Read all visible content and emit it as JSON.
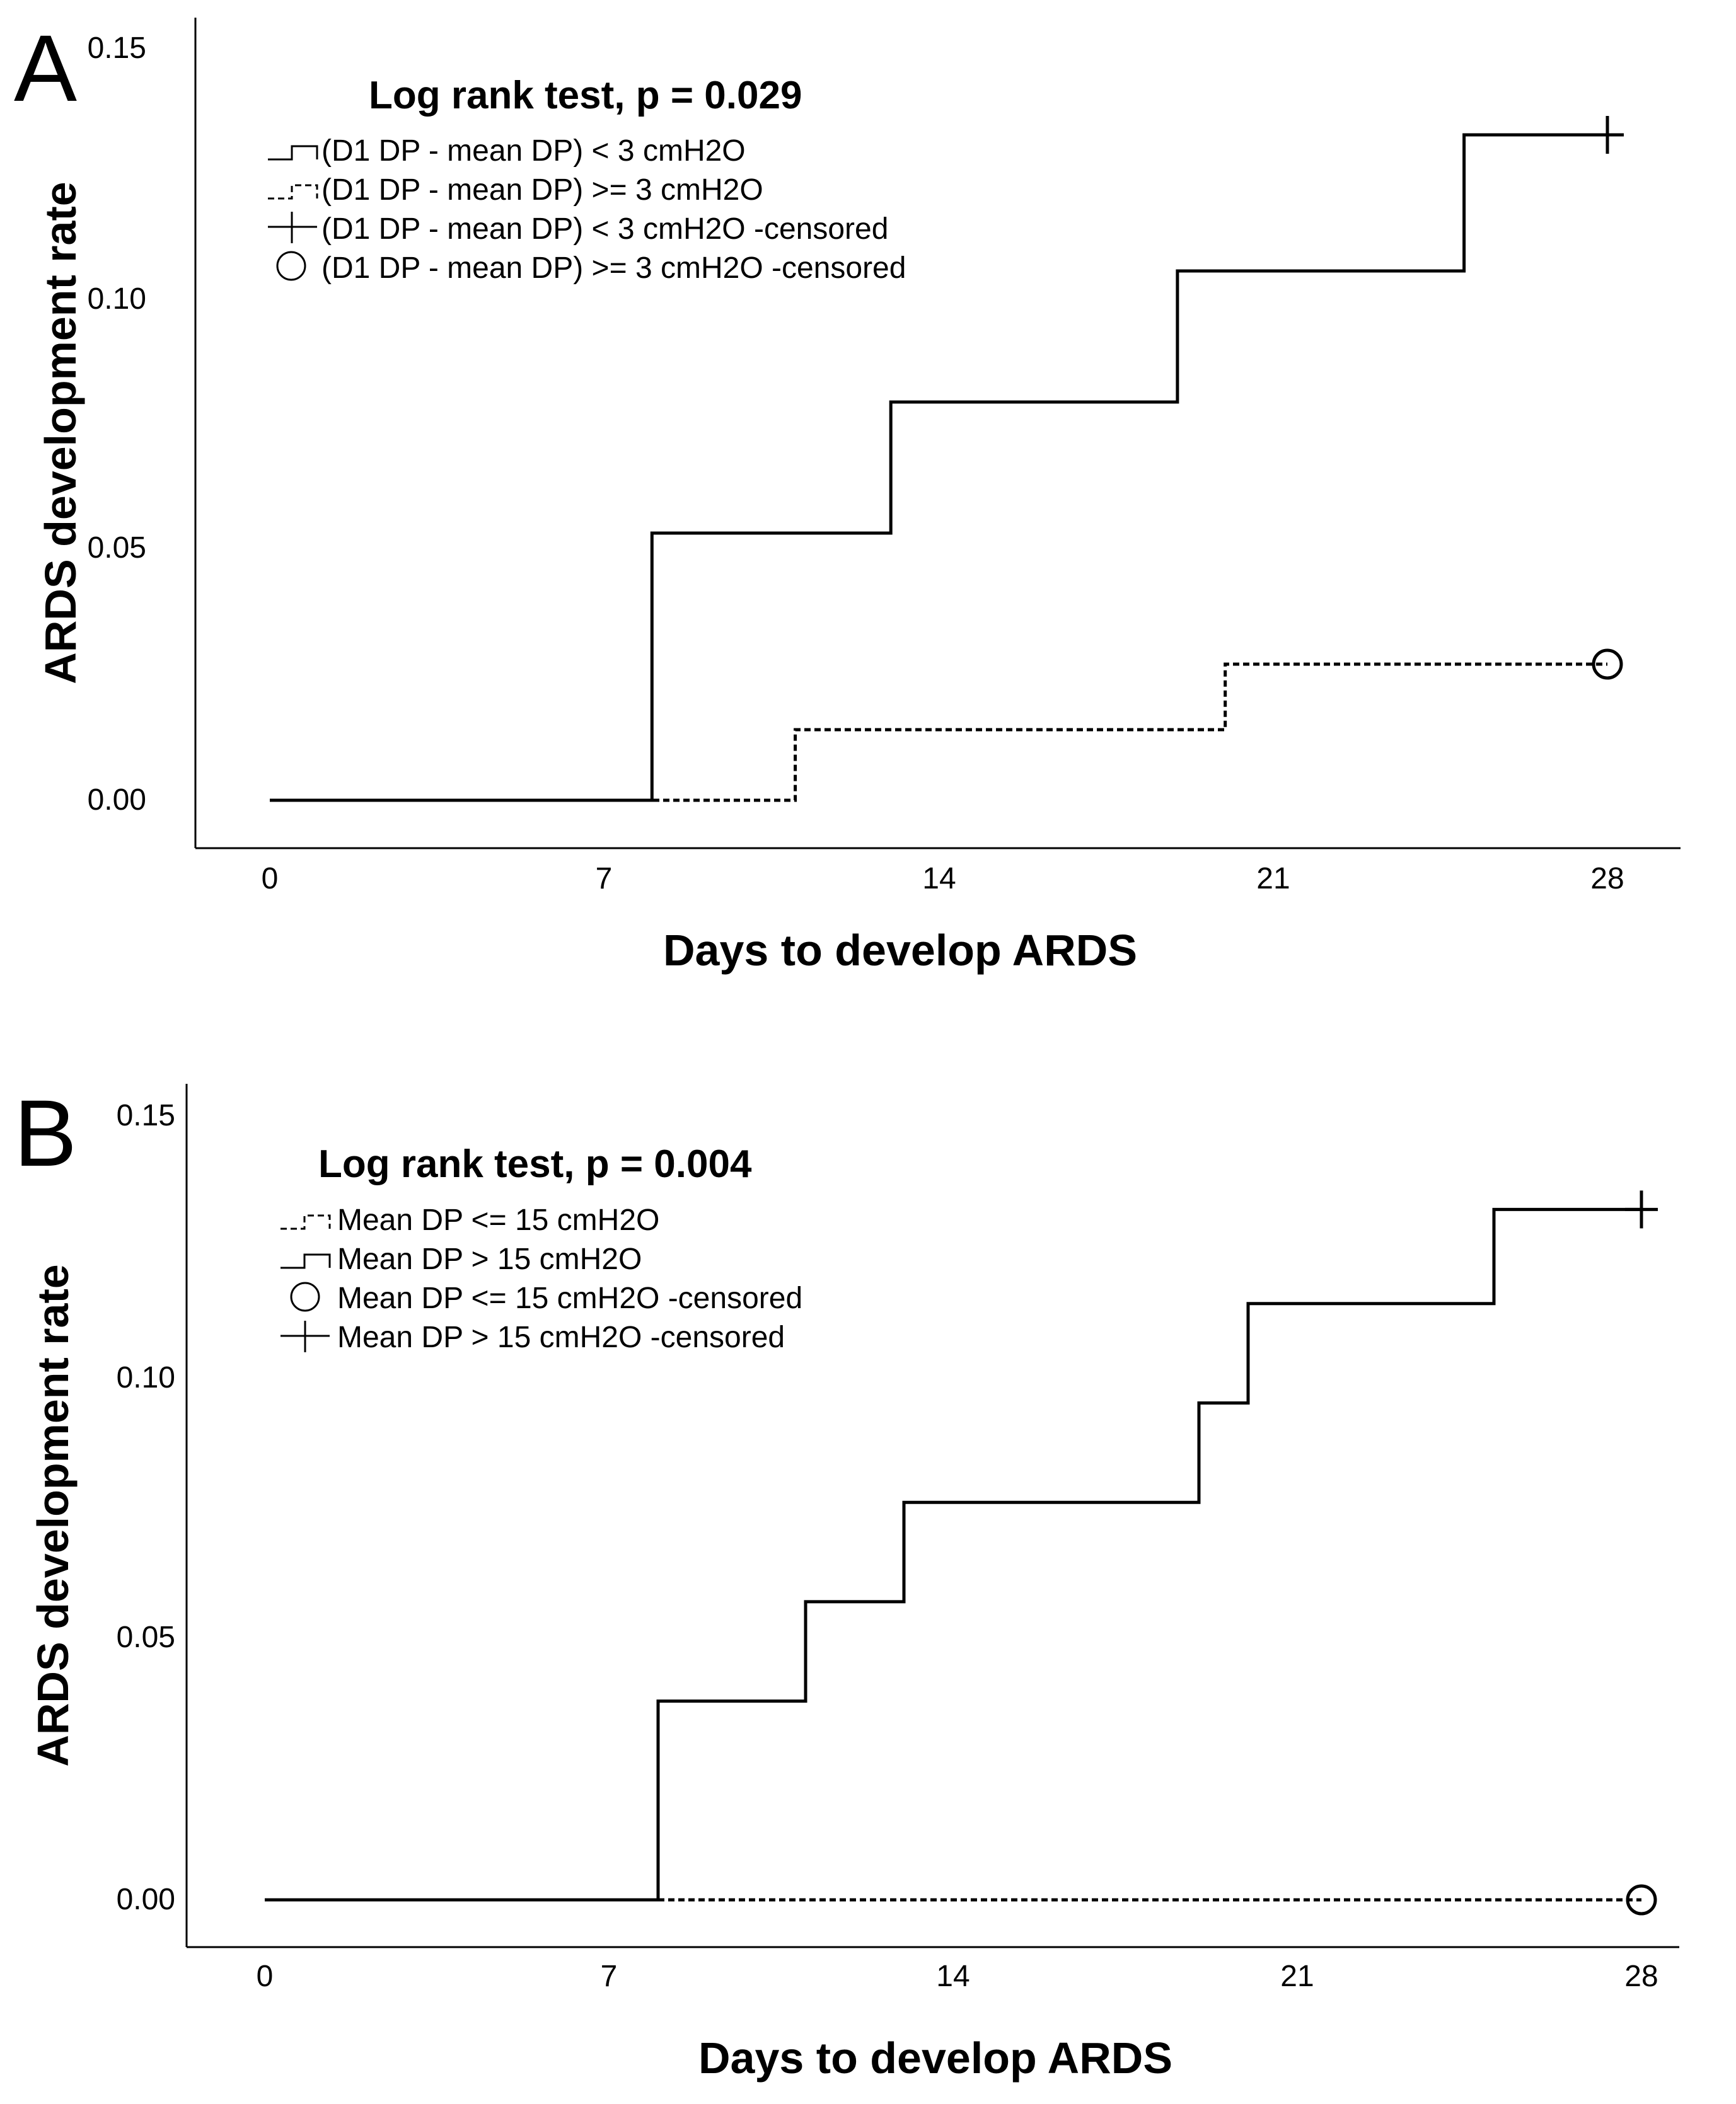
{
  "chart_data": [
    {
      "panel_label": "A",
      "type": "line",
      "subtype": "kaplan-meier-step",
      "title": "Log rank test, p = 0.029",
      "xlabel": "Days to develop ARDS",
      "ylabel": "ARDS development rate",
      "xlim": [
        -1.5,
        29.5
      ],
      "ylim": [
        -0.008,
        0.158
      ],
      "xticks": [
        0,
        7,
        14,
        21,
        28
      ],
      "yticks": [
        0.0,
        0.05,
        0.1,
        0.15
      ],
      "ytick_labels": [
        "0.00",
        "0.05",
        "0.10",
        "0.15"
      ],
      "legend": [
        {
          "label": "(D1 DP - mean DP) < 3 cmH2O",
          "symbol": "solid-step"
        },
        {
          "label": "(D1 DP - mean DP) >= 3 cmH2O",
          "symbol": "dotted-step"
        },
        {
          "label": "(D1 DP - mean DP) < 3 cmH2O -censored",
          "symbol": "plus"
        },
        {
          "label": "(D1 DP - mean DP) >= 3 cmH2O -censored",
          "symbol": "circle"
        }
      ],
      "series": [
        {
          "name": "(D1 DP - mean DP) < 3 cmH2O",
          "style": "solid",
          "censor_marker": "plus",
          "x": [
            0,
            8,
            13,
            19,
            25,
            28
          ],
          "y": [
            0.0,
            0.053,
            0.079,
            0.105,
            0.132,
            0.132
          ]
        },
        {
          "name": "(D1 DP - mean DP) >= 3 cmH2O",
          "style": "dotted",
          "censor_marker": "circle",
          "x": [
            0,
            11,
            20,
            28
          ],
          "y": [
            0.0,
            0.014,
            0.027,
            0.027
          ]
        }
      ]
    },
    {
      "panel_label": "B",
      "type": "line",
      "subtype": "kaplan-meier-step",
      "title": "Log rank test, p = 0.004",
      "xlabel": "Days to develop ARDS",
      "ylabel": "ARDS development rate",
      "xlim": [
        -1.5,
        29.5
      ],
      "ylim": [
        -0.008,
        0.158
      ],
      "xticks": [
        0,
        7,
        14,
        21,
        28
      ],
      "yticks": [
        0.0,
        0.05,
        0.1,
        0.15
      ],
      "ytick_labels": [
        "0.00",
        "0.05",
        "0.10",
        "0.15"
      ],
      "legend": [
        {
          "label": "Mean DP <= 15 cmH2O",
          "symbol": "dotted-step"
        },
        {
          "label": "Mean DP > 15 cmH2O",
          "symbol": "solid-step"
        },
        {
          "label": "Mean DP <= 15 cmH2O -censored",
          "symbol": "circle"
        },
        {
          "label": "Mean DP > 15 cmH2O -censored",
          "symbol": "plus"
        }
      ],
      "series": [
        {
          "name": "Mean DP > 15 cmH2O",
          "style": "solid",
          "censor_marker": "plus",
          "x": [
            0,
            8,
            11,
            13,
            19,
            20,
            25,
            28
          ],
          "y": [
            0.0,
            0.038,
            0.057,
            0.076,
            0.095,
            0.114,
            0.132,
            0.132
          ]
        },
        {
          "name": "Mean DP <= 15 cmH2O",
          "style": "dotted",
          "censor_marker": "circle",
          "x": [
            0,
            28
          ],
          "y": [
            0.0,
            0.0
          ]
        }
      ]
    }
  ]
}
